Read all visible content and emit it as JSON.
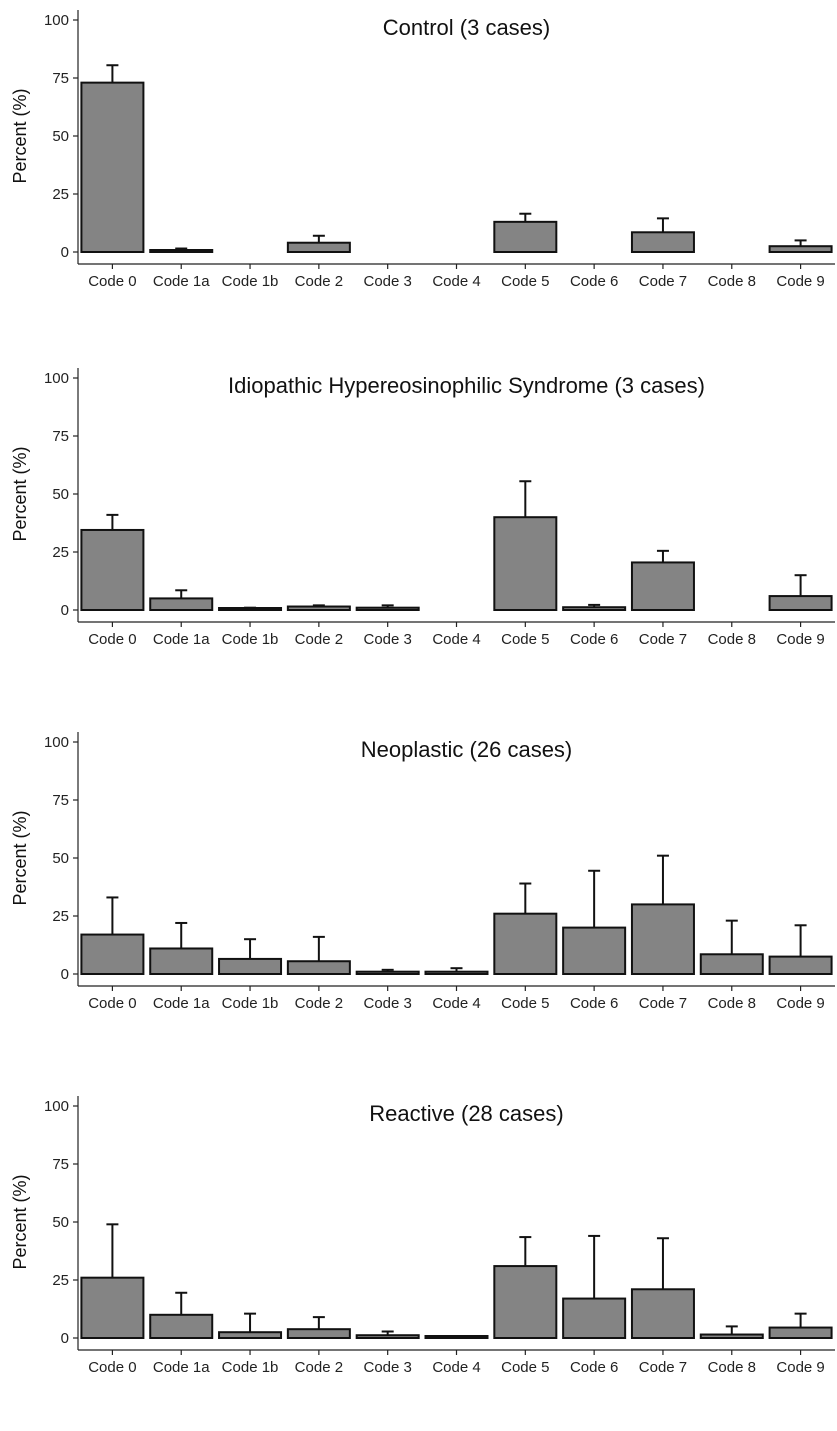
{
  "colors": {
    "bar_fill": "#848484",
    "bar_stroke": "#111111",
    "axis": "#222222"
  },
  "chart_data": [
    {
      "type": "bar",
      "title": "Control (3 cases)",
      "ylabel": "Percent (%)",
      "xlabel": "",
      "ylim": [
        0,
        100
      ],
      "yticks": [
        0,
        25,
        50,
        75,
        100
      ],
      "grid": false,
      "categories": [
        "Code 0",
        "Code 1a",
        "Code 1b",
        "Code 2",
        "Code 3",
        "Code 4",
        "Code 5",
        "Code 6",
        "Code 7",
        "Code 8",
        "Code 9"
      ],
      "values": [
        73,
        0.8,
        0,
        4,
        0,
        0,
        13,
        0,
        8.5,
        0,
        2.5
      ],
      "error_upper": [
        80.5,
        1.5,
        0,
        7,
        0,
        0,
        16.5,
        0,
        14.5,
        0,
        5
      ]
    },
    {
      "type": "bar",
      "title": "Idiopathic Hypereosinophilic Syndrome (3 cases)",
      "ylabel": "Percent (%)",
      "xlabel": "",
      "ylim": [
        0,
        100
      ],
      "yticks": [
        0,
        25,
        50,
        75,
        100
      ],
      "grid": false,
      "categories": [
        "Code 0",
        "Code 1a",
        "Code 1b",
        "Code 2",
        "Code 3",
        "Code 4",
        "Code 5",
        "Code 6",
        "Code 7",
        "Code 8",
        "Code 9"
      ],
      "values": [
        34.5,
        5,
        0.5,
        1.5,
        1,
        0,
        40,
        1.2,
        20.5,
        0,
        6
      ],
      "error_upper": [
        41,
        8.5,
        1,
        2,
        2,
        0,
        55.5,
        2.2,
        25.5,
        0,
        15
      ]
    },
    {
      "type": "bar",
      "title": "Neoplastic (26 cases)",
      "ylabel": "Percent (%)",
      "xlabel": "",
      "ylim": [
        0,
        100
      ],
      "yticks": [
        0,
        25,
        50,
        75,
        100
      ],
      "grid": false,
      "categories": [
        "Code 0",
        "Code 1a",
        "Code 1b",
        "Code 2",
        "Code 3",
        "Code 4",
        "Code 5",
        "Code 6",
        "Code 7",
        "Code 8",
        "Code 9"
      ],
      "values": [
        17,
        11,
        6.5,
        5.5,
        1,
        1,
        26,
        20,
        30,
        8.5,
        7.5
      ],
      "error_upper": [
        33,
        22,
        15,
        16,
        1.8,
        2.5,
        39,
        44.5,
        51,
        23,
        21
      ]
    },
    {
      "type": "bar",
      "title": "Reactive (28 cases)",
      "ylabel": "Percent (%)",
      "xlabel": "",
      "ylim": [
        0,
        100
      ],
      "yticks": [
        0,
        25,
        50,
        75,
        100
      ],
      "grid": false,
      "categories": [
        "Code 0",
        "Code 1a",
        "Code 1b",
        "Code 2",
        "Code 3",
        "Code 4",
        "Code 5",
        "Code 6",
        "Code 7",
        "Code 8",
        "Code 9"
      ],
      "values": [
        26,
        10,
        2.5,
        3.8,
        1.2,
        0.5,
        31,
        17,
        21,
        1.5,
        4.5
      ],
      "error_upper": [
        49,
        19.5,
        10.5,
        9,
        2.8,
        0.8,
        43.5,
        44,
        43,
        5,
        10.5
      ]
    }
  ]
}
